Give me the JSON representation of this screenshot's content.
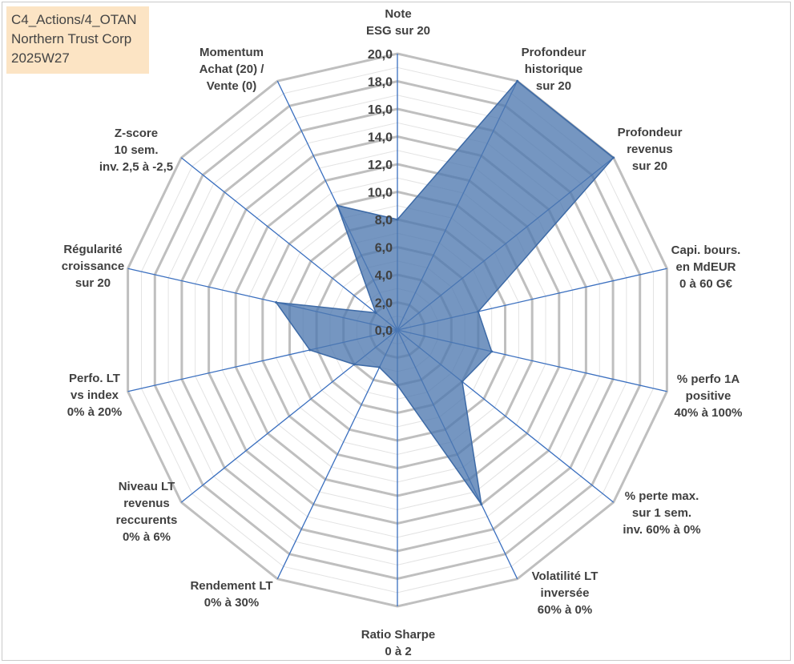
{
  "header": {
    "line1": "C4_Actions/4_OTAN",
    "line2": "Northern Trust Corp",
    "line3": "2025W27"
  },
  "colors": {
    "fill": "#4e79b0",
    "grid": "#bfbfbf",
    "spoke": "#3a6fbf",
    "title_bg": "#fce4c4"
  },
  "chart_data": {
    "type": "radar",
    "rmin": 0,
    "rmax": 20,
    "tick_step": 2,
    "tick_labels": [
      "0,0",
      "2,0",
      "4,0",
      "6,0",
      "8,0",
      "10,0",
      "12,0",
      "14,0",
      "16,0",
      "18,0",
      "20,0"
    ],
    "axes": [
      {
        "label": [
          "Note",
          "ESG sur 20"
        ],
        "value": 8.0
      },
      {
        "label": [
          "Profondeur",
          "historique",
          "sur 20"
        ],
        "value": 20.0
      },
      {
        "label": [
          "Profondeur",
          "revenus",
          "sur 20"
        ],
        "value": 20.0
      },
      {
        "label": [
          "Capi. bours.",
          "en MdEUR",
          "0 à 60 G€"
        ],
        "value": 6.0
      },
      {
        "label": [
          "% perfo 1A",
          "positive",
          "40% à 100%"
        ],
        "value": 7.0
      },
      {
        "label": [
          "% perte max.",
          "sur 1 sem.",
          "inv. 60% à 0%"
        ],
        "value": 6.0
      },
      {
        "label": [
          "Volatilité LT",
          "inversée",
          "60% à 0%"
        ],
        "value": 14.0
      },
      {
        "label": [
          "Ratio Sharpe",
          "0 à 2"
        ],
        "value": 4.0
      },
      {
        "label": [
          "Rendement LT",
          "0% à 30%"
        ],
        "value": 3.0
      },
      {
        "label": [
          "Niveau LT",
          "revenus",
          "reccurents",
          "0% à 6%"
        ],
        "value": 4.0
      },
      {
        "label": [
          "Perfo. LT",
          "vs index",
          "0% à 20%"
        ],
        "value": 6.5
      },
      {
        "label": [
          "Régularité",
          "croissance",
          "sur 20"
        ],
        "value": 9.0
      },
      {
        "label": [
          "Z-score",
          "10 sem.",
          "inv. 2,5 à -2,5"
        ],
        "value": 2.0
      },
      {
        "label": [
          "Momentum",
          "Achat (20) /",
          "Vente (0)"
        ],
        "value": 10.0
      }
    ]
  }
}
